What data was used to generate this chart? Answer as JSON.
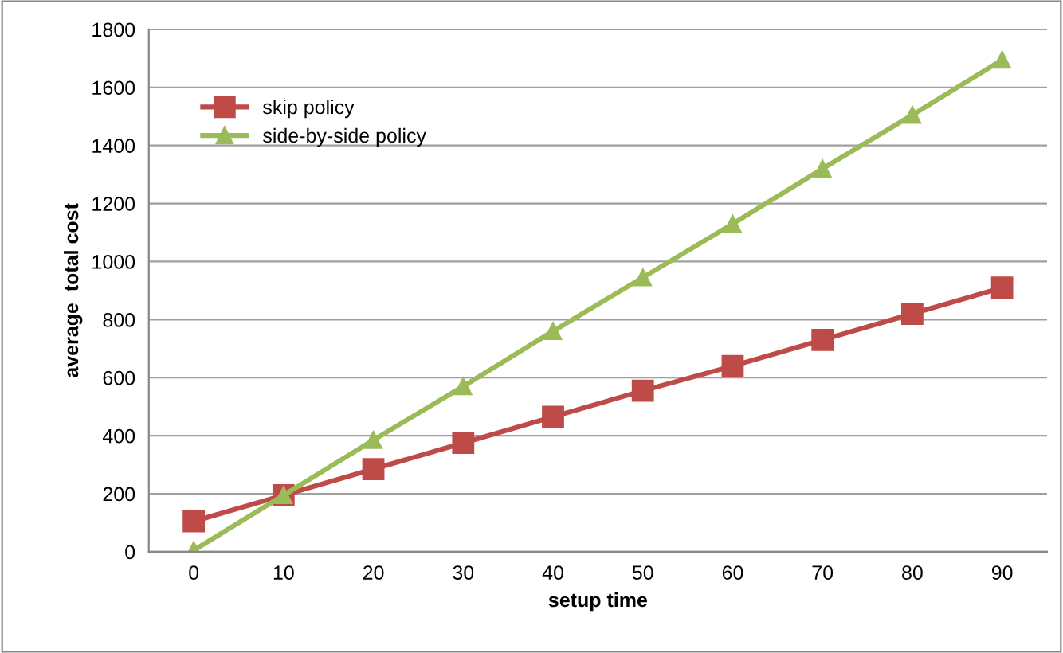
{
  "chart_data": {
    "type": "line",
    "xlabel": "setup time",
    "ylabel": "average  total cost",
    "categories": [
      "0",
      "10",
      "20",
      "30",
      "40",
      "50",
      "60",
      "70",
      "80",
      "90"
    ],
    "series": [
      {
        "name": "skip policy",
        "color": "#be4b48",
        "marker": "square",
        "values": [
          105,
          195,
          285,
          375,
          465,
          555,
          640,
          730,
          820,
          910
        ]
      },
      {
        "name": "side-by-side policy",
        "color": "#9bbb59",
        "marker": "triangle",
        "values": [
          5,
          195,
          385,
          570,
          760,
          945,
          1130,
          1320,
          1505,
          1695
        ]
      }
    ],
    "ylim": [
      0,
      1800
    ],
    "yticks": [
      0,
      200,
      400,
      600,
      800,
      1000,
      1200,
      1400,
      1600,
      1800
    ],
    "grid": "y",
    "legend": "top left",
    "line_style": "solid"
  }
}
